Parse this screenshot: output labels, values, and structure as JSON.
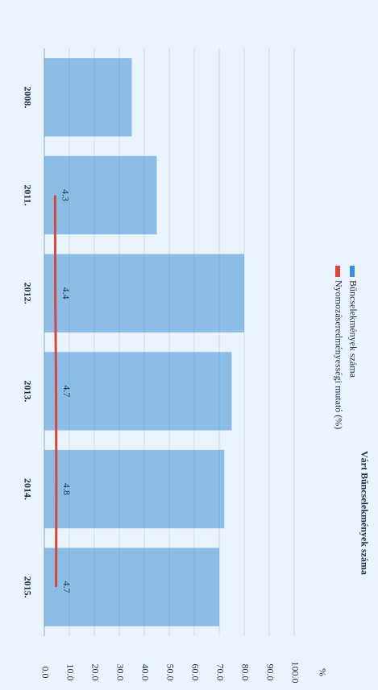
{
  "chart_data": {
    "type": "bar-line",
    "annotation": "Várt Bűncselekmények száma",
    "y_label": "%",
    "categories": [
      "2008.",
      "2011.",
      "2012.",
      "2013.",
      "2014.",
      "2015."
    ],
    "series": [
      {
        "name": "Bűncselekmények száma",
        "type": "bar",
        "color": "#3d8fd6",
        "values": [
          35,
          45,
          80,
          75,
          72,
          70
        ]
      },
      {
        "name": "Nyomozáseredményességi mutató (%)",
        "type": "line",
        "color": "#d9463a",
        "values": [
          null,
          4.3,
          4.4,
          4.7,
          4.8,
          4.7
        ]
      }
    ],
    "ylim": [
      0,
      100
    ],
    "yticks": [
      {
        "value": 0,
        "label": "0.0"
      },
      {
        "value": 10,
        "label": "10.0"
      },
      {
        "value": 20,
        "label": "20.0"
      },
      {
        "value": 30,
        "label": "30.0"
      },
      {
        "value": 40,
        "label": "40.0"
      },
      {
        "value": 50,
        "label": "50.0"
      },
      {
        "value": 60,
        "label": "60.0"
      },
      {
        "value": 70,
        "label": "70.0"
      },
      {
        "value": 80,
        "label": "80.0"
      },
      {
        "value": 90,
        "label": "90.0"
      },
      {
        "value": 100,
        "label": "100.0"
      }
    ]
  }
}
